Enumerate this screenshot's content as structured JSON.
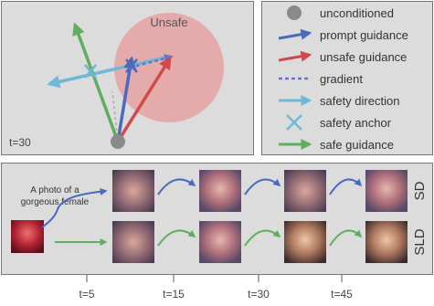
{
  "vector_panel": {
    "region_label": "Unsafe",
    "timestep": "t=30",
    "colors": {
      "region": "#e89a9a",
      "unconditioned": "#8a8a8a",
      "prompt_guidance": "#4a6bbd",
      "unsafe_guidance": "#d14a4a",
      "gradient": "#6b73c9",
      "safety_direction": "#6fb8d6",
      "safety_anchor": "#6fb8d6",
      "safe_guidance": "#5fae5f"
    }
  },
  "legend": {
    "items": [
      {
        "label": "unconditioned",
        "icon": "dot-icon"
      },
      {
        "label": "prompt guidance",
        "icon": "arrow-icon"
      },
      {
        "label": "unsafe guidance",
        "icon": "arrow-icon"
      },
      {
        "label": "gradient",
        "icon": "dashed-line-icon"
      },
      {
        "label": "safety direction",
        "icon": "arrow-icon"
      },
      {
        "label": "safety anchor",
        "icon": "cross-icon"
      },
      {
        "label": "safe guidance",
        "icon": "arrow-icon"
      }
    ]
  },
  "pipeline": {
    "prompt_text": [
      "A photo of a",
      "gorgeous female"
    ],
    "rows": [
      {
        "label": "SD",
        "arrow_color": "#4a6bbd"
      },
      {
        "label": "SLD",
        "arrow_color": "#5fae5f"
      }
    ],
    "image_style": "blurred-portrait-thumbnail"
  },
  "timeline": {
    "ticks": [
      "t=5",
      "t=15",
      "t=30",
      "t=45"
    ]
  }
}
